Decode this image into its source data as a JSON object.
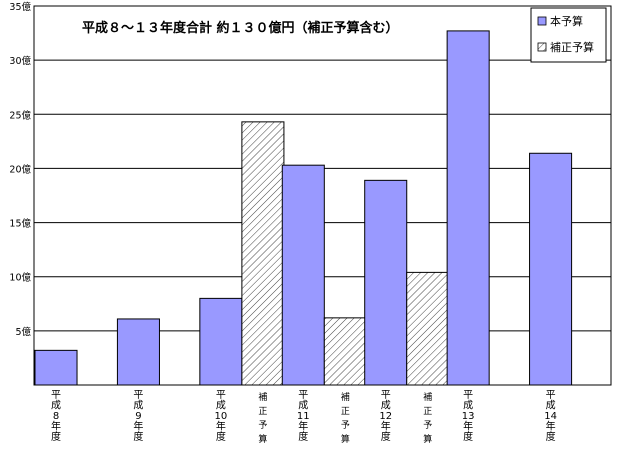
{
  "chart_data": {
    "type": "bar",
    "title": "平成８～１３年度合計 約１３０億円（補正予算含む）",
    "ylim": [
      0,
      35
    ],
    "yticks": [
      5,
      10,
      15,
      20,
      25,
      30,
      35
    ],
    "ytick_labels": [
      "5億",
      "10億",
      "15億",
      "20億",
      "25億",
      "30億",
      "35億"
    ],
    "grid": true,
    "legend_position": "top-right",
    "categories": [
      "平成8年度",
      "平成9年度",
      "平成10年度",
      "平成11年度",
      "平成12年度",
      "平成13年度",
      "平成14年度"
    ],
    "category_labels_vertical": [
      [
        "平",
        "成",
        "8",
        "年",
        "度"
      ],
      [
        "平",
        "成",
        "9",
        "年",
        "度"
      ],
      [
        "平",
        "成",
        "10",
        "年",
        "度"
      ],
      [
        "平",
        "成",
        "11",
        "年",
        "度"
      ],
      [
        "平",
        "成",
        "12",
        "年",
        "度"
      ],
      [
        "平",
        "成",
        "13",
        "年",
        "度"
      ],
      [
        "平",
        "成",
        "14",
        "年",
        "度"
      ]
    ],
    "supplementary_label_vertical": [
      "補",
      "正",
      "予",
      "算"
    ],
    "series": [
      {
        "name": "本予算",
        "color": "#9999ff",
        "pattern": "solid",
        "values": [
          3.2,
          6.1,
          8.0,
          20.3,
          18.9,
          32.7,
          21.4
        ]
      },
      {
        "name": "補正予算",
        "color": "#ffffff",
        "pattern": "diagonal-hatch",
        "values": [
          null,
          null,
          24.3,
          6.2,
          10.4,
          null,
          null
        ]
      }
    ]
  }
}
